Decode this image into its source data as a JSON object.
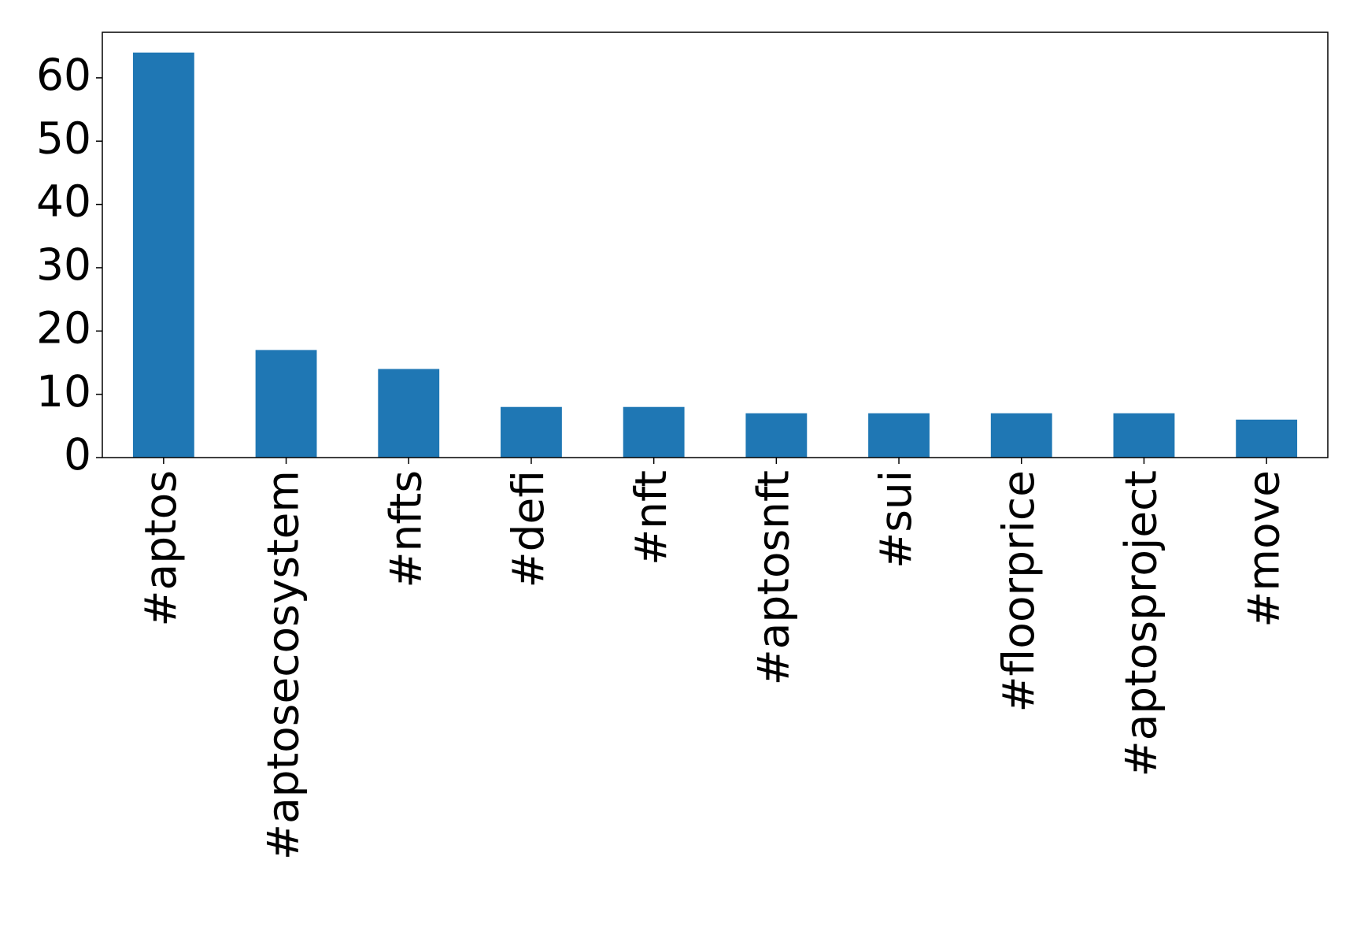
{
  "chart_data": {
    "type": "bar",
    "categories": [
      "#aptos",
      "#aptosecosystem",
      "#nfts",
      "#defi",
      "#nft",
      "#aptosnft",
      "#sui",
      "#floorprice",
      "#aptosproject",
      "#move"
    ],
    "values": [
      64,
      17,
      14,
      8,
      8,
      7,
      7,
      7,
      7,
      6
    ],
    "color": "#1f77b4",
    "ylim": [
      0,
      67.2
    ],
    "yticks": [
      0,
      10,
      20,
      30,
      40,
      50,
      60
    ],
    "grid": false
  }
}
